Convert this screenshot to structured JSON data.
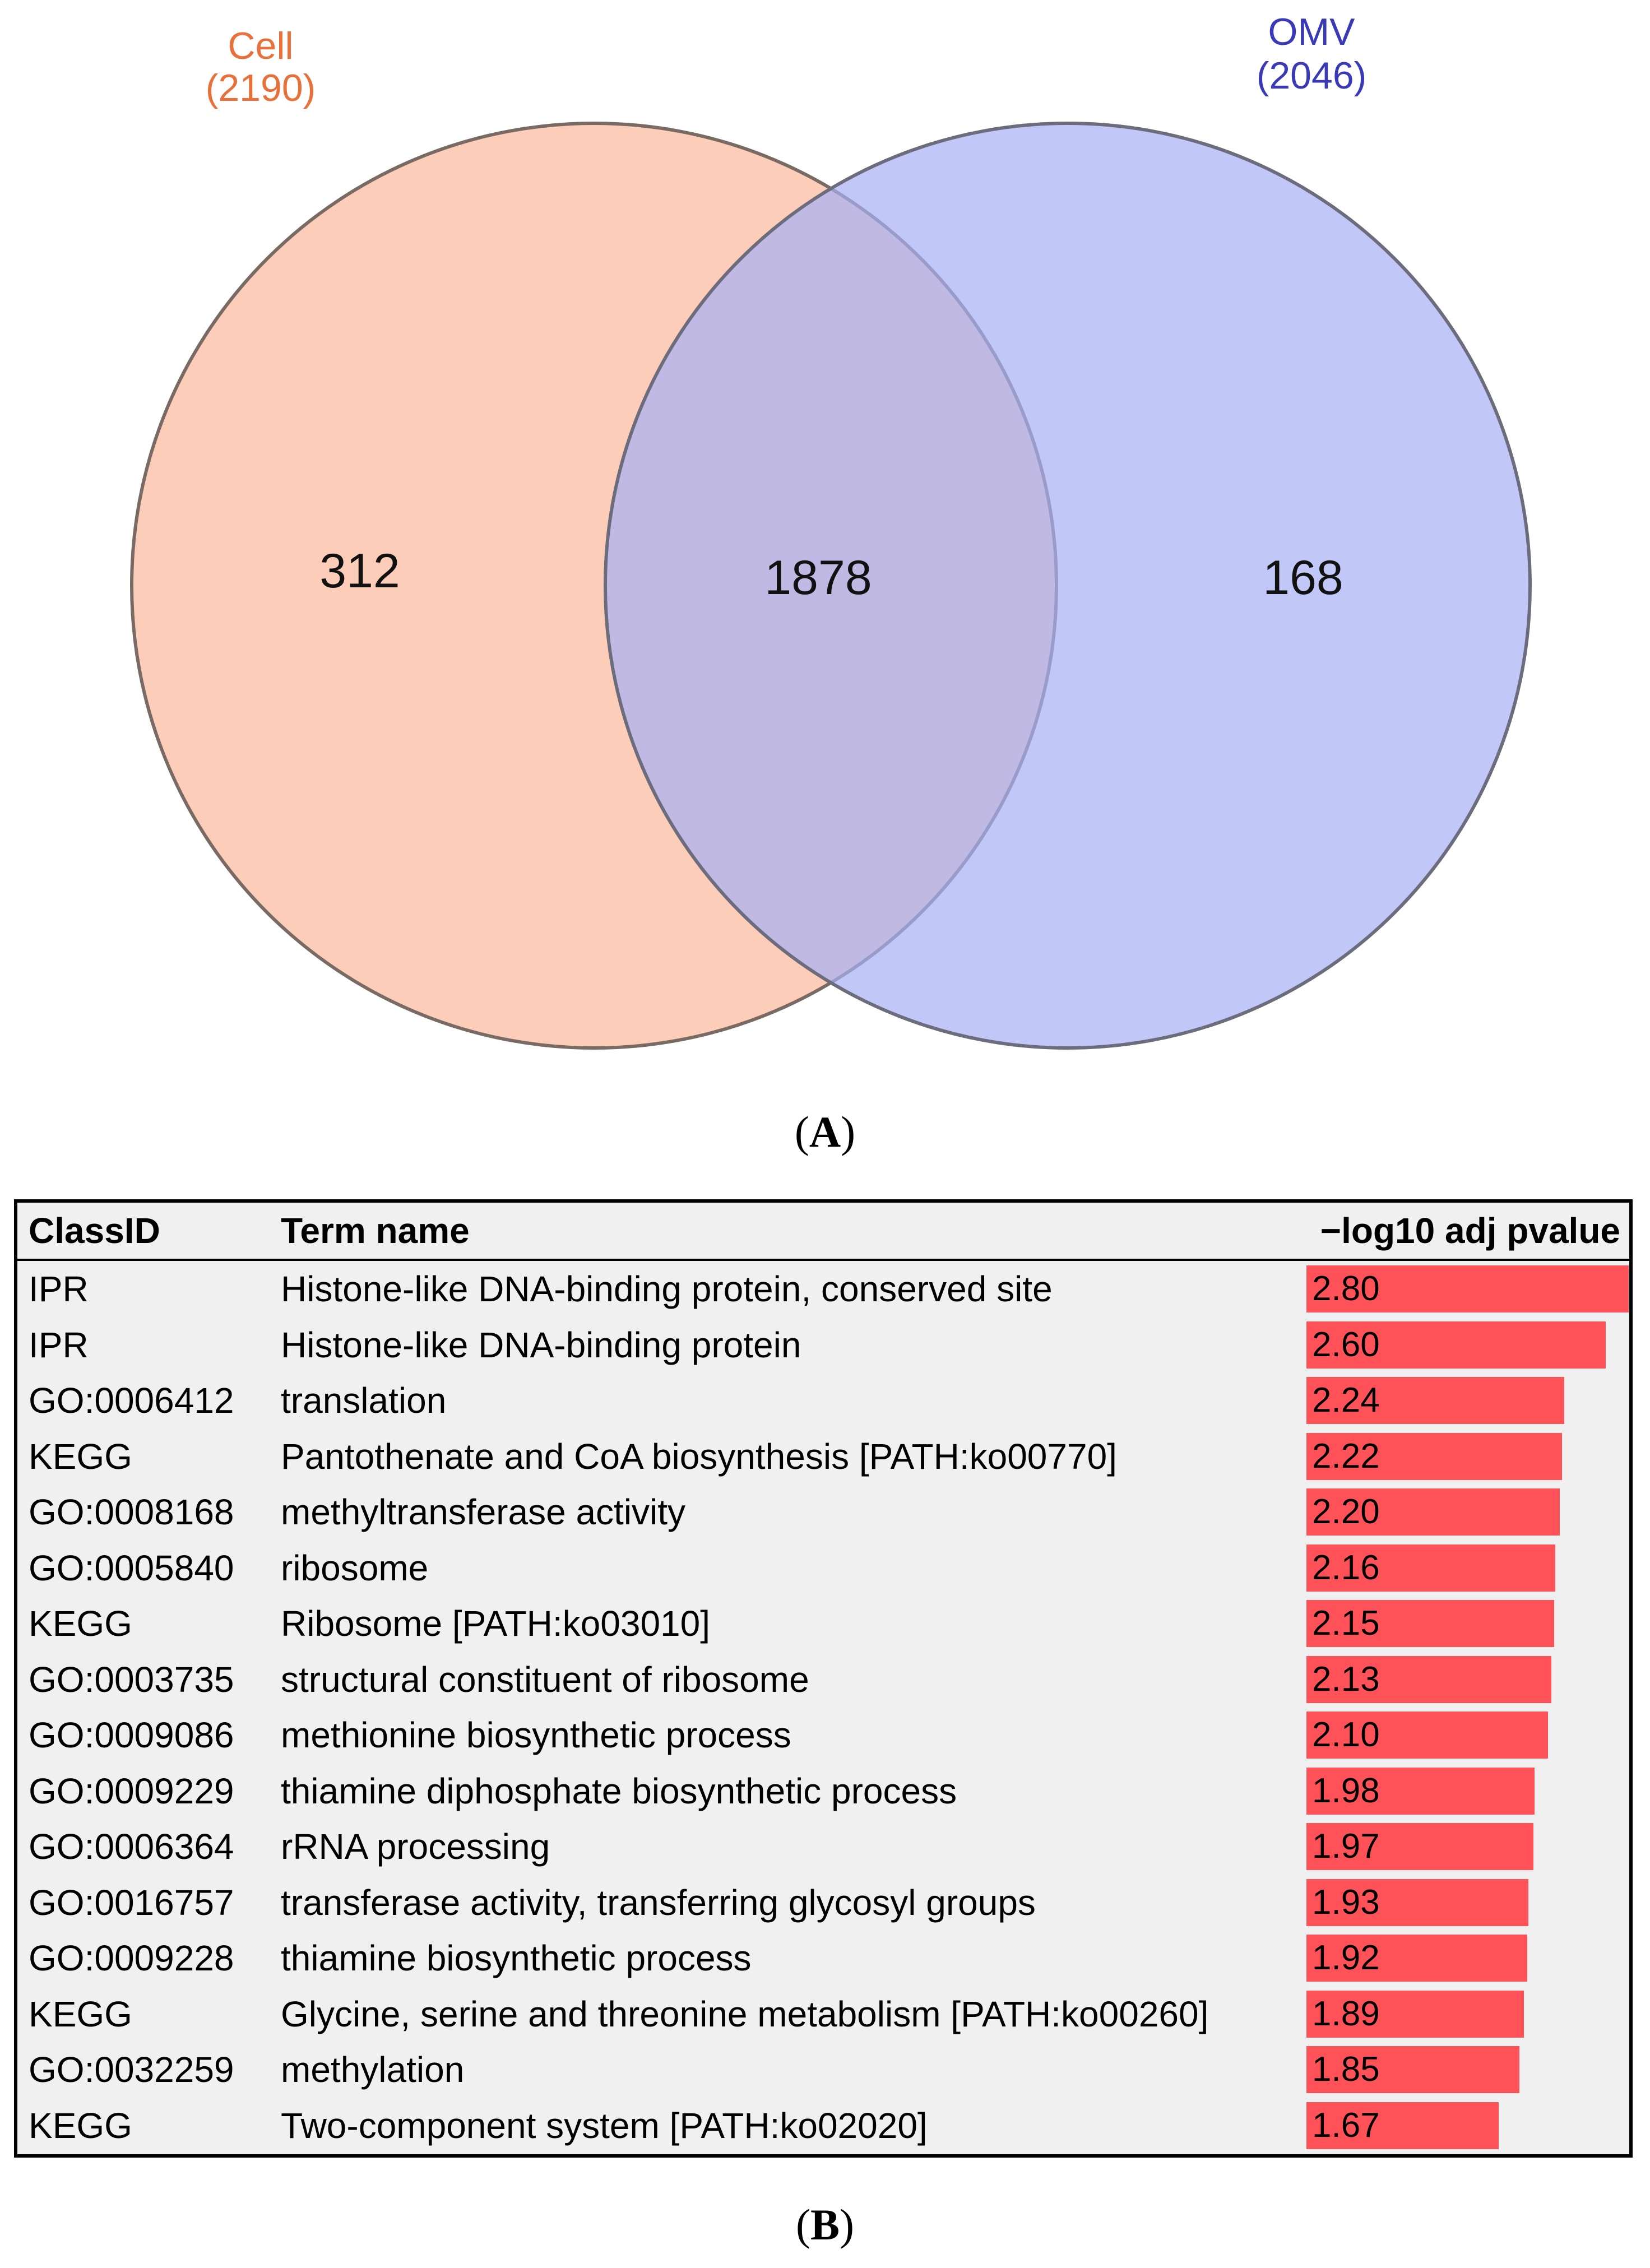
{
  "venn": {
    "sets": [
      {
        "name": "Cell",
        "total": "(2190)",
        "color": "#e8703a",
        "fill": "#fbb89a"
      },
      {
        "name": "OMV",
        "total": "(2046)",
        "color": "#3a3ab8",
        "fill": "#a7b0f5"
      }
    ],
    "regions": {
      "cell_only": "312",
      "intersection": "1878",
      "omv_only": "168"
    }
  },
  "panel_labels": {
    "a": "A",
    "b": "B"
  },
  "table": {
    "headers": {
      "class_id": "ClassID",
      "term": "Term name",
      "value": "−log10 adj pvalue"
    },
    "bar_color": "#ff5258",
    "max_value": 2.8
  },
  "chart_data": {
    "type": "table",
    "title": "",
    "columns": [
      "ClassID",
      "Term name",
      "−log10 adj pvalue"
    ],
    "rows": [
      {
        "class_id": "IPR",
        "term": "Histone-like DNA-binding protein, conserved site",
        "value": 2.8,
        "label": "2.80"
      },
      {
        "class_id": "IPR",
        "term": "Histone-like DNA-binding protein",
        "value": 2.6,
        "label": "2.60"
      },
      {
        "class_id": "GO:0006412",
        "term": "translation",
        "value": 2.24,
        "label": "2.24"
      },
      {
        "class_id": "KEGG",
        "term": "Pantothenate and CoA biosynthesis [PATH:ko00770]",
        "value": 2.22,
        "label": "2.22"
      },
      {
        "class_id": "GO:0008168",
        "term": "methyltransferase activity",
        "value": 2.2,
        "label": "2.20"
      },
      {
        "class_id": "GO:0005840",
        "term": "ribosome",
        "value": 2.16,
        "label": "2.16"
      },
      {
        "class_id": "KEGG",
        "term": "Ribosome [PATH:ko03010]",
        "value": 2.15,
        "label": "2.15"
      },
      {
        "class_id": "GO:0003735",
        "term": "structural constituent of ribosome",
        "value": 2.13,
        "label": "2.13"
      },
      {
        "class_id": "GO:0009086",
        "term": "methionine biosynthetic process",
        "value": 2.1,
        "label": "2.10"
      },
      {
        "class_id": "GO:0009229",
        "term": "thiamine diphosphate biosynthetic process",
        "value": 1.98,
        "label": "1.98"
      },
      {
        "class_id": "GO:0006364",
        "term": "rRNA processing",
        "value": 1.97,
        "label": "1.97"
      },
      {
        "class_id": "GO:0016757",
        "term": "transferase activity, transferring glycosyl groups",
        "value": 1.93,
        "label": "1.93"
      },
      {
        "class_id": "GO:0009228",
        "term": "thiamine biosynthetic process",
        "value": 1.92,
        "label": "1.92"
      },
      {
        "class_id": "KEGG",
        "term": "Glycine, serine and threonine metabolism [PATH:ko00260]",
        "value": 1.89,
        "label": "1.89"
      },
      {
        "class_id": "GO:0032259",
        "term": "methylation",
        "value": 1.85,
        "label": "1.85"
      },
      {
        "class_id": "KEGG",
        "term": "Two-component system [PATH:ko02020]",
        "value": 1.67,
        "label": "1.67"
      }
    ]
  }
}
